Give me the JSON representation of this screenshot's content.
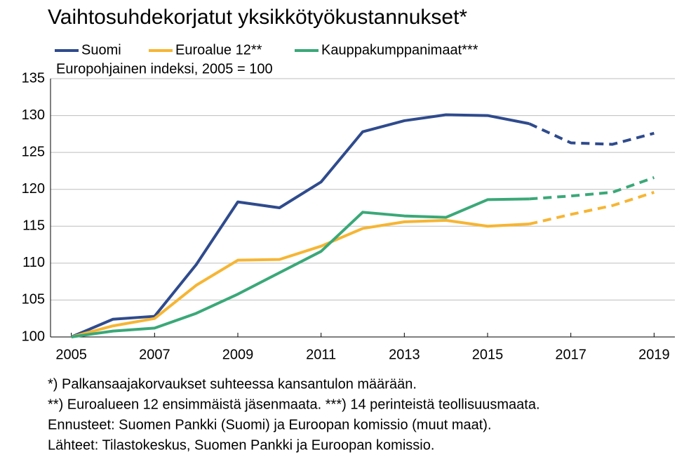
{
  "chart_data": {
    "type": "line",
    "title": "Vaihtosuhdekorjatut yksikkötyökustannukset*",
    "subtitle": "Europohjainen indeksi, 2005 = 100",
    "x": [
      2005,
      2006,
      2007,
      2008,
      2009,
      2010,
      2011,
      2012,
      2013,
      2014,
      2015,
      2016,
      2017,
      2018,
      2019
    ],
    "series": [
      {
        "name": "Suomi",
        "color": "#2f4b8d",
        "values": [
          100,
          102.4,
          102.8,
          109.8,
          118.3,
          117.5,
          121,
          127.8,
          129.3,
          130.1,
          130,
          128.9,
          126.3,
          126.1,
          127.6
        ]
      },
      {
        "name": "Euroalue 12**",
        "color": "#f6b533",
        "values": [
          100,
          101.5,
          102.5,
          107,
          110.4,
          110.5,
          112.3,
          114.7,
          115.6,
          115.8,
          115,
          115.3,
          116.6,
          117.8,
          119.6
        ]
      },
      {
        "name": "Kauppakumppanimaat***",
        "color": "#3aa878",
        "values": [
          100,
          100.8,
          101.2,
          103.2,
          105.8,
          108.7,
          111.6,
          116.9,
          116.4,
          116.2,
          118.6,
          118.7,
          119.1,
          119.6,
          121.6
        ]
      }
    ],
    "forecast_from": 2016,
    "xlim": [
      2004.5,
      2019.5
    ],
    "xticks": [
      2005,
      2007,
      2009,
      2011,
      2013,
      2015,
      2017,
      2019
    ],
    "ylim": [
      100,
      135
    ],
    "yticks": [
      100,
      105,
      110,
      115,
      120,
      125,
      130,
      135
    ],
    "grid": true,
    "notes": [
      "*) Palkansaajakorvaukset suhteessa kansantulon määrään.",
      "**) Euroalueen 12 ensimmäistä jäsenmaata. ***) 14 perinteistä teollisuusmaata.",
      "Ennusteet: Suomen Pankki (Suomi) ja Euroopan komissio (muut maat).",
      "Lähteet: Tilastokeskus, Suomen Pankki ja Euroopan komissio."
    ]
  }
}
